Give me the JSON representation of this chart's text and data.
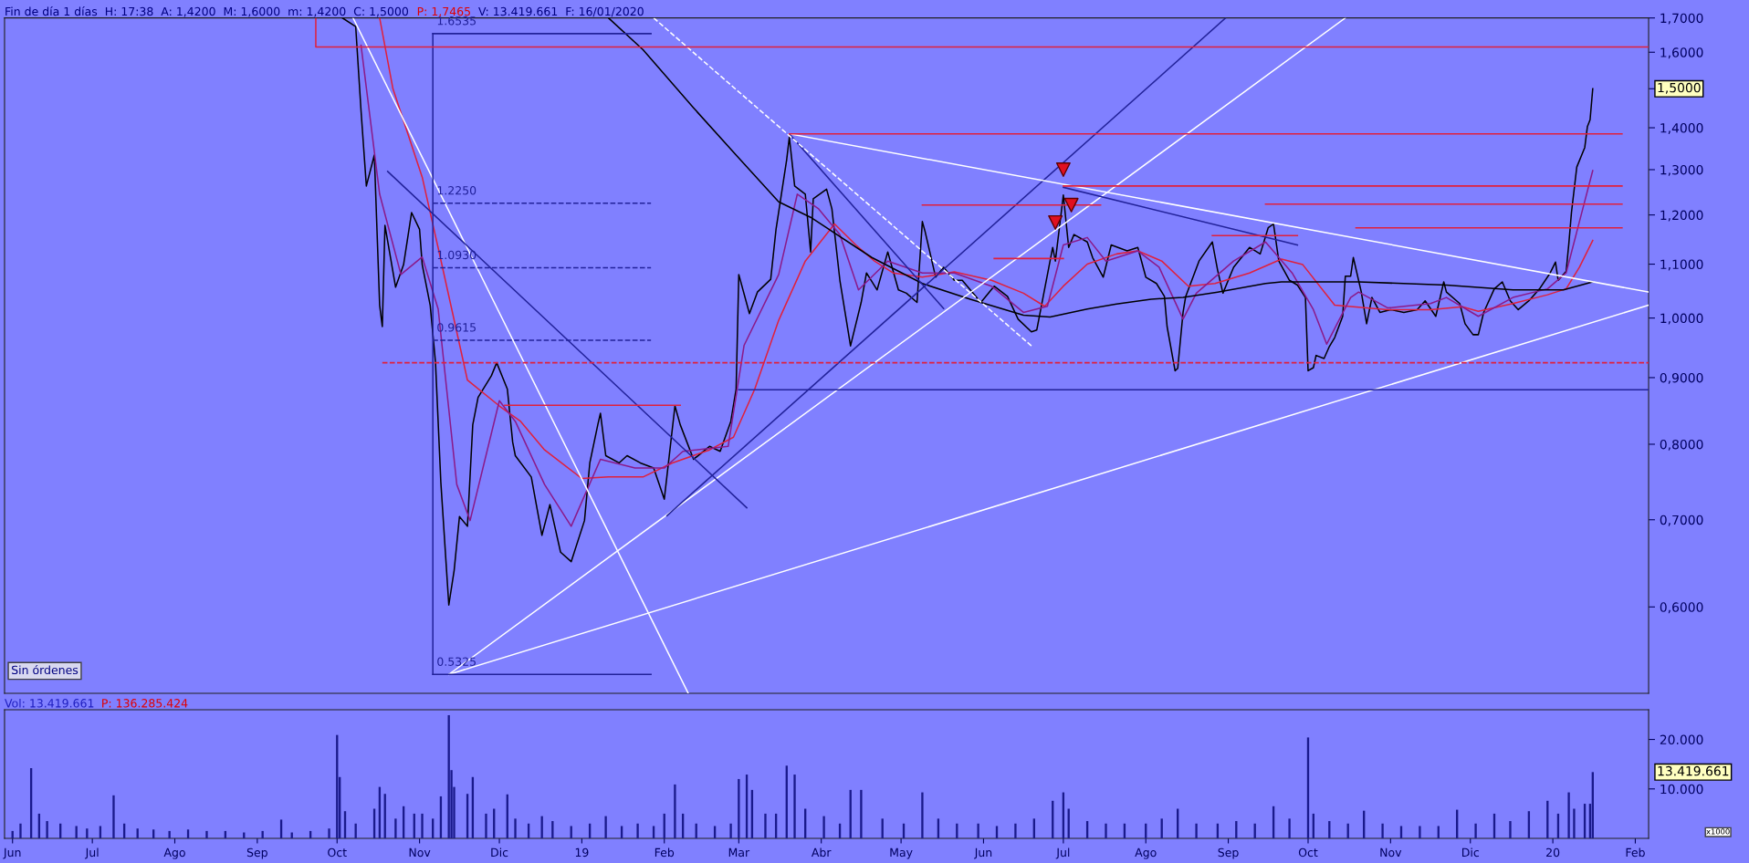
{
  "chart_data": [
    {
      "type": "line",
      "title": "Fin de día 1 días  H: 17:38  A: 1,4200  M: 1,6000  m: 1,4200  C: 1,5000",
      "log": "y",
      "grid": false,
      "tick_labels": "y",
      "xlim": [
        "2018-05-29",
        "2020-02-06"
      ],
      "ylim": [
        0.515,
        1.7
      ],
      "yticks": [
        {
          "value": 0.6,
          "label": "0,6000"
        },
        {
          "value": 0.7,
          "label": "0,7000"
        },
        {
          "value": 0.8,
          "label": "0,8000"
        },
        {
          "value": 0.9,
          "label": "0,9000"
        },
        {
          "value": 1.0,
          "label": "1,0000"
        },
        {
          "value": 1.1,
          "label": "1,1000"
        },
        {
          "value": 1.2,
          "label": "1,2000"
        },
        {
          "value": 1.3,
          "label": "1,3000"
        },
        {
          "value": 1.4,
          "label": "1,4000"
        },
        {
          "value": 1.5,
          "label": null
        },
        {
          "value": 1.6,
          "label": "1,6000"
        },
        {
          "value": 1.7,
          "label": "1,7000"
        }
      ],
      "annotations": [
        "P: 1,7465",
        "V: 13.419.661  F: 16/01/2020",
        "Sin órdenes",
        "1,5000",
        {
          "text": "1.6535",
          "x": "2018-11-06",
          "y": 1.6535
        },
        {
          "text": "1.2250",
          "x": "2018-11-06",
          "y": 1.225
        },
        {
          "text": "1.0930",
          "x": "2018-11-06",
          "y": 1.093
        },
        {
          "text": "0.9615",
          "x": "2018-11-06",
          "y": 0.9615
        },
        {
          "text": "0.5325",
          "x": "2018-11-06",
          "y": 0.5325
        }
      ],
      "series": [
        {
          "color": "#000000",
          "x": [
            "2018-10-03",
            "2018-10-08",
            "2018-10-10",
            "2018-10-12",
            "2018-10-15",
            "2018-10-17",
            "2018-10-18",
            "2018-10-19",
            "2018-10-23",
            "2018-10-26",
            "2018-10-29",
            "2018-11-01",
            "2018-11-02",
            "2018-11-05",
            "2018-11-07",
            "2018-11-09",
            "2018-11-12",
            "2018-11-14",
            "2018-11-16",
            "2018-11-19",
            "2018-11-21",
            "2018-11-23",
            "2018-11-28",
            "2018-11-30",
            "2018-12-04",
            "2018-12-06",
            "2018-12-07",
            "2018-12-13",
            "2018-12-17",
            "2018-12-20",
            "2018-12-24",
            "2018-12-28",
            "2019-01-02",
            "2019-01-04",
            "2019-01-07",
            "2019-01-08",
            "2019-01-10",
            "2019-01-15",
            "2019-01-18",
            "2019-01-23",
            "2019-01-28",
            "2019-02-01",
            "2019-02-05",
            "2019-02-07",
            "2019-02-12",
            "2019-02-18",
            "2019-02-22",
            "2019-02-26",
            "2019-02-28",
            "2019-03-01",
            "2019-03-05",
            "2019-03-08",
            "2019-03-13",
            "2019-03-15",
            "2019-03-19",
            "2019-03-20",
            "2019-03-22",
            "2019-03-26",
            "2019-03-28",
            "2019-03-29",
            "2019-04-03",
            "2019-04-05",
            "2019-04-08",
            "2019-04-12",
            "2019-04-16",
            "2019-04-18",
            "2019-04-22",
            "2019-04-26",
            "2019-04-30",
            "2019-05-03",
            "2019-05-07",
            "2019-05-09",
            "2019-05-10",
            "2019-05-14",
            "2019-05-17",
            "2019-05-21",
            "2019-05-24",
            "2019-05-31",
            "2019-06-05",
            "2019-06-10",
            "2019-06-14",
            "2019-06-19",
            "2019-06-21",
            "2019-06-26",
            "2019-06-27",
            "2019-06-28",
            "2019-07-01",
            "2019-07-03",
            "2019-07-05",
            "2019-07-10",
            "2019-07-12",
            "2019-07-16",
            "2019-07-19",
            "2019-07-25",
            "2019-07-29",
            "2019-08-01",
            "2019-08-05",
            "2019-08-08",
            "2019-08-09",
            "2019-08-12",
            "2019-08-13",
            "2019-08-15",
            "2019-08-16",
            "2019-08-21",
            "2019-08-26",
            "2019-08-28",
            "2019-08-30",
            "2019-09-03",
            "2019-09-09",
            "2019-09-13",
            "2019-09-16",
            "2019-09-18",
            "2019-09-20",
            "2019-09-24",
            "2019-09-27",
            "2019-09-30",
            "2019-10-01",
            "2019-10-03",
            "2019-10-04",
            "2019-10-07",
            "2019-10-09",
            "2019-10-11",
            "2019-10-14",
            "2019-10-15",
            "2019-10-17",
            "2019-10-18",
            "2019-10-21",
            "2019-10-23",
            "2019-10-25",
            "2019-10-28",
            "2019-11-01",
            "2019-11-06",
            "2019-11-11",
            "2019-11-14",
            "2019-11-18",
            "2019-11-21",
            "2019-11-22",
            "2019-11-27",
            "2019-11-29",
            "2019-12-02",
            "2019-12-04",
            "2019-12-06",
            "2019-12-10",
            "2019-12-13",
            "2019-12-16",
            "2019-12-19",
            "2019-12-23",
            "2019-12-27",
            "2019-12-31",
            "2020-01-02",
            "2020-01-03",
            "2020-01-06",
            "2020-01-07",
            "2020-01-08",
            "2020-01-10",
            "2020-01-13",
            "2020-01-14",
            "2020-01-15",
            "2020-01-16"
          ],
          "values": [
            1.7,
            1.674,
            1.443,
            1.263,
            1.334,
            1.023,
            0.985,
            1.178,
            1.056,
            1.099,
            1.205,
            1.17,
            1.099,
            1.023,
            0.924,
            0.748,
            0.602,
            0.64,
            0.704,
            0.692,
            0.828,
            0.869,
            0.903,
            0.924,
            0.882,
            0.803,
            0.784,
            0.755,
            0.681,
            0.719,
            0.661,
            0.65,
            0.699,
            0.774,
            0.828,
            0.845,
            0.784,
            0.774,
            0.784,
            0.774,
            0.767,
            0.726,
            0.856,
            0.828,
            0.779,
            0.797,
            0.79,
            0.833,
            0.882,
            1.08,
            1.008,
            1.047,
            1.071,
            1.17,
            1.323,
            1.377,
            1.263,
            1.245,
            1.124,
            1.235,
            1.256,
            1.213,
            1.069,
            0.952,
            1.028,
            1.083,
            1.051,
            1.124,
            1.051,
            1.045,
            1.028,
            1.186,
            1.166,
            1.075,
            1.094,
            1.069,
            1.069,
            1.028,
            1.058,
            1.039,
            0.998,
            0.976,
            0.979,
            1.106,
            1.133,
            1.106,
            1.243,
            1.133,
            1.159,
            1.144,
            1.113,
            1.075,
            1.138,
            1.126,
            1.133,
            1.075,
            1.063,
            1.039,
            0.985,
            0.911,
            0.915,
            1.01,
            1.039,
            1.106,
            1.144,
            1.088,
            1.045,
            1.094,
            1.133,
            1.12,
            1.173,
            1.181,
            1.106,
            1.069,
            1.06,
            1.037,
            0.911,
            0.916,
            0.936,
            0.931,
            0.951,
            0.966,
            1.003,
            1.077,
            1.077,
            1.113,
            1.047,
            0.99,
            1.037,
            1.01,
            1.015,
            1.01,
            1.015,
            1.031,
            1.003,
            1.066,
            1.047,
            1.026,
            0.99,
            0.971,
            0.971,
            1.01,
            1.053,
            1.066,
            1.031,
            1.015,
            1.031,
            1.053,
            1.083,
            1.104,
            1.069,
            1.086,
            1.14,
            1.205,
            1.306,
            1.352,
            1.403,
            1.42,
            1.5
          ]
        },
        {
          "color": "#e0203c",
          "x": [
            "2018-10-17",
            "2018-10-22",
            "2018-11-02",
            "2018-11-08",
            "2018-11-19",
            "2018-12-01",
            "2018-12-09",
            "2018-12-18",
            "2019-01-01",
            "2019-01-11",
            "2019-01-24",
            "2019-02-04",
            "2019-02-18",
            "2019-02-27",
            "2019-03-07",
            "2019-03-16",
            "2019-03-26",
            "2019-04-06",
            "2019-04-14",
            "2019-04-21",
            "2019-04-28",
            "2019-05-09",
            "2019-05-21",
            "2019-06-04",
            "2019-06-16",
            "2019-06-24",
            "2019-07-01",
            "2019-07-10",
            "2019-07-21",
            "2019-07-29",
            "2019-08-07",
            "2019-08-17",
            "2019-08-27",
            "2019-09-09",
            "2019-09-21",
            "2019-09-29",
            "2019-10-11",
            "2019-10-31",
            "2019-11-16",
            "2019-11-28",
            "2019-12-04",
            "2019-12-17",
            "2019-12-30",
            "2020-01-06",
            "2020-01-11",
            "2020-01-16"
          ],
          "values": [
            1.7,
            1.5,
            1.283,
            1.132,
            0.896,
            0.856,
            0.833,
            0.792,
            0.753,
            0.755,
            0.755,
            0.774,
            0.792,
            0.81,
            0.882,
            0.996,
            1.106,
            1.181,
            1.138,
            1.106,
            1.083,
            1.075,
            1.085,
            1.069,
            1.045,
            1.021,
            1.058,
            1.1,
            1.12,
            1.126,
            1.106,
            1.058,
            1.063,
            1.083,
            1.11,
            1.099,
            1.023,
            1.015,
            1.015,
            1.02,
            1.012,
            1.026,
            1.042,
            1.053,
            1.094,
            1.147
          ]
        },
        {
          "color": "#8a1a8a",
          "x": [
            "2018-10-10",
            "2018-10-17",
            "2018-10-25",
            "2018-11-02",
            "2018-11-08",
            "2018-11-15",
            "2018-11-20",
            "2018-12-01",
            "2018-12-07",
            "2018-12-18",
            "2018-12-28",
            "2019-01-08",
            "2019-01-21",
            "2019-02-01",
            "2019-02-08",
            "2019-02-25",
            "2019-03-03",
            "2019-03-16",
            "2019-03-23",
            "2019-03-31",
            "2019-04-08",
            "2019-04-15",
            "2019-04-26",
            "2019-05-09",
            "2019-05-21",
            "2019-06-04",
            "2019-06-16",
            "2019-06-25",
            "2019-07-01",
            "2019-07-10",
            "2019-07-17",
            "2019-07-29",
            "2019-08-06",
            "2019-08-15",
            "2019-08-20",
            "2019-09-03",
            "2019-09-15",
            "2019-09-25",
            "2019-10-03",
            "2019-10-08",
            "2019-10-17",
            "2019-10-20",
            "2019-10-31",
            "2019-11-16",
            "2019-11-22",
            "2019-12-04",
            "2019-12-17",
            "2019-12-30",
            "2020-01-06",
            "2020-01-11",
            "2020-01-16"
          ],
          "values": [
            1.62,
            1.245,
            1.08,
            1.114,
            1.016,
            0.745,
            0.699,
            0.864,
            0.833,
            0.745,
            0.692,
            0.779,
            0.767,
            0.767,
            0.79,
            0.797,
            0.953,
            1.08,
            1.245,
            1.213,
            1.159,
            1.051,
            1.106,
            1.083,
            1.083,
            1.058,
            1.01,
            1.021,
            1.138,
            1.153,
            1.106,
            1.126,
            1.094,
            0.998,
            1.045,
            1.106,
            1.144,
            1.083,
            1.015,
            0.955,
            1.037,
            1.047,
            1.018,
            1.026,
            1.037,
            1.003,
            1.037,
            1.053,
            1.083,
            1.186,
            1.298
          ]
        },
        {
          "color": "#000000",
          "x": [
            "2019-01-11",
            "2019-01-24",
            "2019-02-12",
            "2019-02-28",
            "2019-03-16",
            "2019-03-28",
            "2019-04-03",
            "2019-04-20",
            "2019-05-09",
            "2019-05-27",
            "2019-06-16",
            "2019-06-26",
            "2019-07-10",
            "2019-07-21",
            "2019-08-03",
            "2019-08-15",
            "2019-08-28",
            "2019-09-15",
            "2019-09-21",
            "2019-10-20",
            "2019-11-22",
            "2019-12-17",
            "2020-01-05",
            "2020-01-16"
          ],
          "values": [
            1.7,
            1.607,
            1.45,
            1.334,
            1.228,
            1.195,
            1.173,
            1.113,
            1.063,
            1.034,
            1.005,
            1.002,
            1.016,
            1.025,
            1.034,
            1.037,
            1.047,
            1.063,
            1.066,
            1.066,
            1.06,
            1.051,
            1.051,
            1.066
          ]
        },
        {
          "color": "#ffffff",
          "x": [
            "2018-10-07",
            "2019-02-10"
          ],
          "values": [
            1.7,
            0.515
          ]
        },
        {
          "color": "#ffffff",
          "x": [
            "2018-11-12",
            "2019-10-15"
          ],
          "values": [
            0.5325,
            1.7
          ]
        },
        {
          "color": "#22229a",
          "x": [
            "2019-02-02",
            "2019-08-31"
          ],
          "values": [
            0.705,
            1.7
          ]
        },
        {
          "color": "#22229a",
          "x": [
            "2018-10-20",
            "2019-03-04"
          ],
          "values": [
            1.296,
            0.715
          ]
        },
        {
          "color": "#ffffff",
          "x": [
            "2018-11-12",
            "2020-02-06"
          ],
          "values": [
            0.5325,
            1.023
          ]
        },
        {
          "color": "#ffffff",
          "x": [
            "2019-03-20",
            "2020-02-06"
          ],
          "values": [
            1.385,
            1.047
          ]
        },
        {
          "color": "#22229a",
          "x": [
            "2019-03-20",
            "2019-05-17"
          ],
          "values": [
            1.385,
            1.017
          ]
        },
        {
          "color": "#ffffff",
          "line_style": "dashed",
          "x": [
            "2019-01-28",
            "2019-06-19"
          ],
          "values": [
            1.7,
            0.952
          ]
        },
        {
          "color": "#22229a",
          "x": [
            "2019-07-01",
            "2019-09-27"
          ],
          "values": [
            1.26,
            1.138
          ]
        },
        {
          "color": "#22229a",
          "x": [
            "2018-11-06",
            "2018-11-06"
          ],
          "values": [
            0.5325,
            1.6535
          ]
        },
        {
          "color": "#22229a",
          "x": [
            "2018-11-06",
            "2019-01-27"
          ],
          "values": [
            1.6535,
            1.6535
          ]
        },
        {
          "color": "#22229a",
          "line_style": "dashed",
          "x": [
            "2018-11-06",
            "2019-01-27"
          ],
          "values": [
            1.225,
            1.225
          ]
        },
        {
          "color": "#22229a",
          "line_style": "dashed",
          "x": [
            "2018-11-06",
            "2019-01-27"
          ],
          "values": [
            1.093,
            1.093
          ]
        },
        {
          "color": "#22229a",
          "line_style": "dashed",
          "x": [
            "2018-11-06",
            "2019-01-27"
          ],
          "values": [
            0.9615,
            0.9615
          ]
        },
        {
          "color": "#22229a",
          "x": [
            "2018-11-06",
            "2019-01-27"
          ],
          "values": [
            0.5325,
            0.5325
          ]
        },
        {
          "color": "#e0203c",
          "x": [
            "2018-09-23",
            "2018-09-23",
            "2020-02-06"
          ],
          "values": [
            1.7,
            1.615,
            1.615
          ]
        },
        {
          "color": "#e0203c",
          "x": [
            "2019-03-20",
            "2020-01-27"
          ],
          "values": [
            1.385,
            1.385
          ]
        },
        {
          "color": "#e0203c",
          "x": [
            "2019-07-01",
            "2020-01-27"
          ],
          "values": [
            1.263,
            1.263
          ]
        },
        {
          "color": "#e0203c",
          "x": [
            "2019-09-15",
            "2020-01-27"
          ],
          "values": [
            1.223,
            1.223
          ]
        },
        {
          "color": "#e0203c",
          "x": [
            "2019-10-19",
            "2020-01-27"
          ],
          "values": [
            1.173,
            1.173
          ]
        },
        {
          "color": "#e0203c",
          "x": [
            "2019-05-09",
            "2019-07-15"
          ],
          "values": [
            1.221,
            1.221
          ]
        },
        {
          "color": "#e0203c",
          "x": [
            "2019-08-26",
            "2019-09-27"
          ],
          "values": [
            1.157,
            1.157
          ]
        },
        {
          "color": "#e0203c",
          "x": [
            "2019-06-05",
            "2019-07-01"
          ],
          "values": [
            1.111,
            1.111
          ]
        },
        {
          "color": "#e0203c",
          "line_style": "dashed",
          "x": [
            "2018-10-18",
            "2020-02-06"
          ],
          "values": [
            0.924,
            0.924
          ]
        },
        {
          "color": "#22229a",
          "x": [
            "2019-03-01",
            "2020-02-06"
          ],
          "values": [
            0.881,
            0.881
          ]
        },
        {
          "color": "#e0203c",
          "x": [
            "2018-12-03",
            "2019-02-07"
          ],
          "values": [
            0.857,
            0.857
          ]
        },
        {
          "type": "scatter",
          "marker": "triangle",
          "color": "#e01020",
          "x": [
            "2019-06-28",
            "2019-07-01",
            "2019-07-04"
          ],
          "values": [
            1.184,
            1.3,
            1.221
          ]
        }
      ]
    },
    {
      "type": "bar",
      "title": "Vol: 13.419.661",
      "grid": false,
      "xlim": [
        "2018-05-29",
        "2020-02-06"
      ],
      "ylim": [
        0,
        26000
      ],
      "yticks": [
        {
          "value": 10000,
          "label": "10.000"
        },
        {
          "value": 20000,
          "label": "20.000"
        }
      ],
      "xticks": [
        {
          "value": "2018-06-01",
          "label": "Jun"
        },
        {
          "value": "2018-07-01",
          "label": "Jul"
        },
        {
          "value": "2018-08-01",
          "label": "Ago"
        },
        {
          "value": "2018-09-01",
          "label": "Sep"
        },
        {
          "value": "2018-10-01",
          "label": "Oct"
        },
        {
          "value": "2018-11-01",
          "label": "Nov"
        },
        {
          "value": "2018-12-01",
          "label": "Dic"
        },
        {
          "value": "2019-01-01",
          "label": "19"
        },
        {
          "value": "2019-02-01",
          "label": "Feb"
        },
        {
          "value": "2019-03-01",
          "label": "Mar"
        },
        {
          "value": "2019-04-01",
          "label": "Abr"
        },
        {
          "value": "2019-05-01",
          "label": "May"
        },
        {
          "value": "2019-06-01",
          "label": "Jun"
        },
        {
          "value": "2019-07-01",
          "label": "Jul"
        },
        {
          "value": "2019-08-01",
          "label": "Ago"
        },
        {
          "value": "2019-09-01",
          "label": "Sep"
        },
        {
          "value": "2019-10-01",
          "label": "Oct"
        },
        {
          "value": "2019-11-01",
          "label": "Nov"
        },
        {
          "value": "2019-12-01",
          "label": "Dic"
        },
        {
          "value": "2020-01-01",
          "label": "20"
        },
        {
          "value": "2020-02-01",
          "label": "Feb"
        }
      ],
      "annotations": [
        "P: 136.285.424",
        "13.419.661",
        "x1000"
      ],
      "series": [
        {
          "color": "#1a1a8c",
          "x": [
            "2018-06-01",
            "2018-06-04",
            "2018-06-08",
            "2018-06-11",
            "2018-06-14",
            "2018-06-19",
            "2018-06-25",
            "2018-06-29",
            "2018-07-04",
            "2018-07-09",
            "2018-07-13",
            "2018-07-18",
            "2018-07-24",
            "2018-07-30",
            "2018-08-06",
            "2018-08-13",
            "2018-08-20",
            "2018-08-27",
            "2018-09-03",
            "2018-09-10",
            "2018-09-14",
            "2018-09-21",
            "2018-09-28",
            "2018-10-01",
            "2018-10-02",
            "2018-10-04",
            "2018-10-08",
            "2018-10-15",
            "2018-10-17",
            "2018-10-19",
            "2018-10-23",
            "2018-10-26",
            "2018-10-30",
            "2018-11-02",
            "2018-11-06",
            "2018-11-09",
            "2018-11-12",
            "2018-11-13",
            "2018-11-14",
            "2018-11-19",
            "2018-11-21",
            "2018-11-26",
            "2018-11-29",
            "2018-12-04",
            "2018-12-07",
            "2018-12-12",
            "2018-12-17",
            "2018-12-21",
            "2018-12-28",
            "2019-01-04",
            "2019-01-10",
            "2019-01-16",
            "2019-01-22",
            "2019-01-28",
            "2019-02-01",
            "2019-02-05",
            "2019-02-08",
            "2019-02-13",
            "2019-02-20",
            "2019-02-26",
            "2019-03-01",
            "2019-03-04",
            "2019-03-06",
            "2019-03-11",
            "2019-03-15",
            "2019-03-19",
            "2019-03-22",
            "2019-03-26",
            "2019-04-02",
            "2019-04-08",
            "2019-04-12",
            "2019-04-16",
            "2019-04-24",
            "2019-05-02",
            "2019-05-09",
            "2019-05-15",
            "2019-05-22",
            "2019-05-30",
            "2019-06-06",
            "2019-06-13",
            "2019-06-20",
            "2019-06-27",
            "2019-07-01",
            "2019-07-03",
            "2019-07-10",
            "2019-07-17",
            "2019-07-24",
            "2019-08-01",
            "2019-08-07",
            "2019-08-13",
            "2019-08-20",
            "2019-08-28",
            "2019-09-04",
            "2019-09-11",
            "2019-09-18",
            "2019-09-24",
            "2019-10-01",
            "2019-10-03",
            "2019-10-09",
            "2019-10-16",
            "2019-10-22",
            "2019-10-29",
            "2019-11-05",
            "2019-11-12",
            "2019-11-19",
            "2019-11-26",
            "2019-12-03",
            "2019-12-10",
            "2019-12-16",
            "2019-12-23",
            "2019-12-30",
            "2020-01-03",
            "2020-01-07",
            "2020-01-09",
            "2020-01-13",
            "2020-01-15",
            "2020-01-16"
          ],
          "values": [
            1500,
            3000,
            14200,
            5000,
            3500,
            3000,
            2500,
            2000,
            2500,
            8700,
            3000,
            2000,
            1800,
            1500,
            1800,
            1500,
            1500,
            1200,
            1500,
            3800,
            1200,
            1500,
            2000,
            20900,
            12400,
            5500,
            3000,
            6000,
            10400,
            9000,
            4000,
            6500,
            5000,
            5000,
            4000,
            8500,
            24900,
            13800,
            10400,
            9000,
            12400,
            5000,
            6000,
            8900,
            4000,
            3000,
            4500,
            3500,
            2500,
            3000,
            4500,
            2500,
            3000,
            2500,
            5000,
            10900,
            5000,
            3000,
            2500,
            3000,
            12000,
            12900,
            9800,
            5000,
            5000,
            14700,
            12900,
            6000,
            4500,
            3000,
            9800,
            9800,
            4000,
            3000,
            9300,
            4000,
            3000,
            3000,
            2500,
            3000,
            4000,
            7600,
            9300,
            6000,
            3500,
            3000,
            3000,
            3000,
            4000,
            6000,
            3000,
            3000,
            3500,
            3000,
            6500,
            4000,
            20400,
            5000,
            3500,
            3000,
            5600,
            3000,
            2500,
            2500,
            2500,
            5800,
            3000,
            5000,
            3500,
            5500,
            7600,
            5000,
            9300,
            6000,
            7000,
            7000,
            13400
          ]
        }
      ]
    }
  ]
}
